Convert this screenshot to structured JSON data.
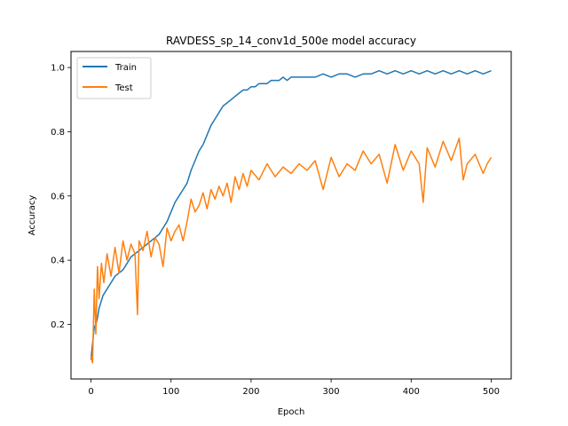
{
  "chart_data": {
    "type": "line",
    "title": "RAVDESS_sp_14_conv1d_500e model accuracy",
    "xlabel": "Epoch",
    "ylabel": "Accuracy",
    "xlim": [
      -25,
      525
    ],
    "ylim": [
      0.03,
      1.05
    ],
    "xticks": [
      0,
      100,
      200,
      300,
      400,
      500
    ],
    "yticks": [
      0.2,
      0.4,
      0.6,
      0.8,
      1.0
    ],
    "xtick_labels": [
      "0",
      "100",
      "200",
      "300",
      "400",
      "500"
    ],
    "ytick_labels": [
      "0.2",
      "0.4",
      "0.6",
      "0.8",
      "1.0"
    ],
    "legend_position": "upper-left",
    "grid": false,
    "series": [
      {
        "name": "Train",
        "color": "#1f77b4",
        "x": [
          0,
          2,
          4,
          6,
          8,
          10,
          15,
          20,
          25,
          30,
          35,
          40,
          45,
          50,
          55,
          60,
          65,
          70,
          75,
          80,
          85,
          90,
          95,
          100,
          105,
          110,
          115,
          120,
          125,
          130,
          135,
          140,
          145,
          150,
          155,
          160,
          165,
          170,
          175,
          180,
          185,
          190,
          195,
          200,
          205,
          210,
          215,
          220,
          225,
          230,
          235,
          240,
          245,
          250,
          260,
          270,
          280,
          290,
          300,
          310,
          320,
          330,
          340,
          350,
          360,
          370,
          380,
          390,
          400,
          410,
          420,
          430,
          440,
          450,
          460,
          470,
          480,
          490,
          500
        ],
        "values": [
          0.09,
          0.14,
          0.19,
          0.2,
          0.22,
          0.25,
          0.29,
          0.31,
          0.33,
          0.35,
          0.36,
          0.37,
          0.39,
          0.41,
          0.42,
          0.43,
          0.44,
          0.45,
          0.46,
          0.47,
          0.48,
          0.5,
          0.52,
          0.55,
          0.58,
          0.6,
          0.62,
          0.64,
          0.68,
          0.71,
          0.74,
          0.76,
          0.79,
          0.82,
          0.84,
          0.86,
          0.88,
          0.89,
          0.9,
          0.91,
          0.92,
          0.93,
          0.93,
          0.94,
          0.94,
          0.95,
          0.95,
          0.95,
          0.96,
          0.96,
          0.96,
          0.97,
          0.96,
          0.97,
          0.97,
          0.97,
          0.97,
          0.98,
          0.97,
          0.98,
          0.98,
          0.97,
          0.98,
          0.98,
          0.99,
          0.98,
          0.99,
          0.98,
          0.99,
          0.98,
          0.99,
          0.98,
          0.99,
          0.98,
          0.99,
          0.98,
          0.99,
          0.98,
          0.99
        ]
      },
      {
        "name": "Test",
        "color": "#ff7f0e",
        "x": [
          0,
          2,
          4,
          6,
          8,
          10,
          13,
          16,
          20,
          25,
          30,
          35,
          40,
          45,
          50,
          55,
          58,
          60,
          65,
          70,
          75,
          80,
          85,
          90,
          95,
          100,
          105,
          110,
          115,
          120,
          125,
          130,
          135,
          140,
          145,
          150,
          155,
          160,
          165,
          170,
          175,
          180,
          185,
          190,
          195,
          200,
          210,
          220,
          230,
          240,
          250,
          260,
          270,
          280,
          290,
          300,
          310,
          320,
          330,
          340,
          350,
          360,
          370,
          380,
          390,
          400,
          410,
          415,
          420,
          430,
          440,
          450,
          460,
          465,
          470,
          480,
          490,
          495,
          500
        ],
        "values": [
          0.1,
          0.08,
          0.31,
          0.17,
          0.38,
          0.28,
          0.39,
          0.33,
          0.42,
          0.35,
          0.44,
          0.36,
          0.46,
          0.4,
          0.45,
          0.42,
          0.23,
          0.46,
          0.43,
          0.49,
          0.41,
          0.47,
          0.45,
          0.38,
          0.5,
          0.46,
          0.49,
          0.51,
          0.46,
          0.52,
          0.59,
          0.55,
          0.57,
          0.61,
          0.56,
          0.62,
          0.59,
          0.63,
          0.6,
          0.64,
          0.58,
          0.66,
          0.62,
          0.67,
          0.63,
          0.68,
          0.65,
          0.7,
          0.66,
          0.69,
          0.67,
          0.7,
          0.68,
          0.71,
          0.62,
          0.72,
          0.66,
          0.7,
          0.68,
          0.74,
          0.7,
          0.73,
          0.64,
          0.76,
          0.68,
          0.74,
          0.7,
          0.58,
          0.75,
          0.69,
          0.77,
          0.71,
          0.78,
          0.65,
          0.7,
          0.73,
          0.67,
          0.7,
          0.72
        ]
      }
    ]
  }
}
